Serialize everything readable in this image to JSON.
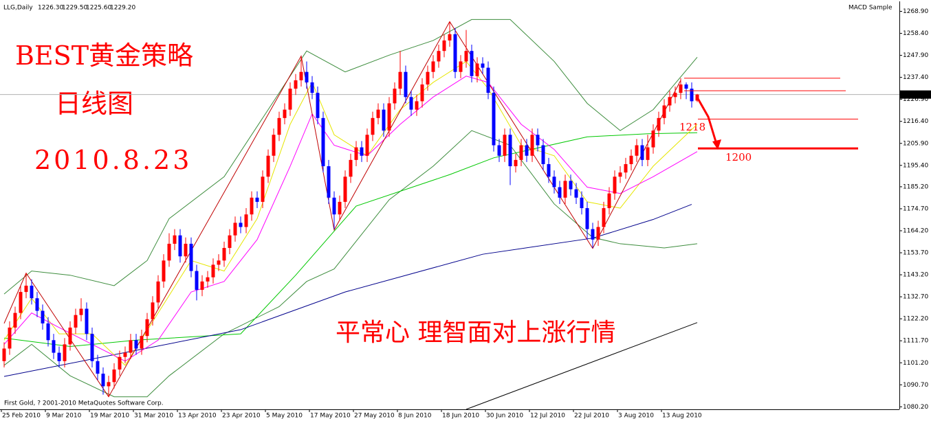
{
  "chart_data": {
    "type": "candlestick",
    "symbol": "LLG,Daily",
    "header": {
      "values": [
        1226.3,
        1229.5,
        1225.6,
        1229.2
      ],
      "value_labels": [
        "1226.30",
        "1229.50",
        "1225.60",
        "1229.20"
      ]
    },
    "indicator": "MACD Sample",
    "copyright": "First Gold, ? 2001-2010 MetaQuotes Software Corp.",
    "annotations": [
      "BEST黄金策略",
      "日线图",
      "2010.8.23",
      "平常心  理智面对上涨行情",
      "1218",
      "1200"
    ],
    "up_color": "#ff0000",
    "down_color": "#0000ff",
    "categories": [
      "25 Feb 2010",
      null,
      null,
      null,
      null,
      null,
      null,
      null,
      "9 Mar 2010",
      null,
      null,
      null,
      null,
      null,
      null,
      null,
      "19 Mar 2010",
      null,
      null,
      null,
      null,
      null,
      null,
      null,
      "31 Mar 2010",
      null,
      null,
      null,
      null,
      null,
      null,
      null,
      "13 Apr 2010",
      null,
      null,
      null,
      null,
      null,
      null,
      null,
      "23 Apr 2010",
      null,
      null,
      null,
      null,
      null,
      null,
      null,
      "5 May 2010",
      null,
      null,
      null,
      null,
      null,
      null,
      null,
      "17 May 2010",
      null,
      null,
      null,
      null,
      null,
      null,
      null,
      "27 May 2010",
      null,
      null,
      null,
      null,
      null,
      null,
      null,
      "8 Jun 2010",
      null,
      null,
      null,
      null,
      null,
      null,
      null,
      "18 Jun 2010",
      null,
      null,
      null,
      null,
      null,
      null,
      null,
      "30 Jun 2010",
      null,
      null,
      null,
      null,
      null,
      null,
      null,
      "12 Jul 2010",
      null,
      null,
      null,
      null,
      null,
      null,
      null,
      "22 Jul 2010",
      null,
      null,
      null,
      null,
      null,
      null,
      null,
      "3 Aug 2010",
      null,
      null,
      null,
      null,
      null,
      null,
      null,
      "13 Aug 2010",
      null,
      null,
      null,
      null,
      null,
      null
    ],
    "open": [
      1102,
      1108,
      1118,
      1125,
      1135,
      1138,
      1132,
      1126,
      1120,
      1112,
      1106,
      1102,
      1110,
      1118,
      1124,
      1127,
      1115,
      1102,
      1096,
      1090,
      1092,
      1098,
      1104,
      1106,
      1112,
      1108,
      1114,
      1122,
      1130,
      1140,
      1150,
      1158,
      1162,
      1152,
      1158,
      1145,
      1136,
      1140,
      1142,
      1148,
      1150,
      1156,
      1162,
      1168,
      1166,
      1172,
      1180,
      1178,
      1190,
      1200,
      1210,
      1218,
      1222,
      1232,
      1236,
      1240,
      1235,
      1230,
      1218,
      1195,
      1180,
      1172,
      1178,
      1190,
      1198,
      1204,
      1200,
      1210,
      1218,
      1222,
      1212,
      1225,
      1232,
      1240,
      1228,
      1222,
      1226,
      1234,
      1240,
      1245,
      1250,
      1255,
      1258,
      1240,
      1245,
      1250,
      1238,
      1244,
      1242,
      1230,
      1205,
      1200,
      1210,
      1195,
      1198,
      1205,
      1200,
      1210,
      1205,
      1196,
      1190,
      1185,
      1180,
      1188,
      1184,
      1180,
      1175,
      1165,
      1160,
      1166,
      1175,
      1182,
      1190,
      1192,
      1196,
      1200,
      1205,
      1198,
      1204,
      1212,
      1218,
      1224,
      1228,
      1230,
      1234,
      1232,
      1226.3
    ],
    "high": [
      1111,
      1121,
      1128,
      1138,
      1144,
      1141,
      1135,
      1129,
      1123,
      1115,
      1109,
      1113,
      1121,
      1127,
      1132,
      1130,
      1118,
      1105,
      1099,
      1095,
      1101,
      1107,
      1109,
      1115,
      1115,
      1117,
      1125,
      1133,
      1143,
      1153,
      1163,
      1165,
      1165,
      1161,
      1161,
      1148,
      1143,
      1145,
      1151,
      1153,
      1159,
      1165,
      1171,
      1171,
      1175,
      1183,
      1183,
      1193,
      1203,
      1213,
      1221,
      1225,
      1235,
      1239,
      1247,
      1245,
      1238,
      1233,
      1221,
      1198,
      1183,
      1181,
      1193,
      1201,
      1207,
      1207,
      1213,
      1221,
      1225,
      1225,
      1228,
      1235,
      1250,
      1243,
      1231,
      1229,
      1237,
      1243,
      1248,
      1253,
      1258,
      1264,
      1261,
      1248,
      1260,
      1253,
      1247,
      1247,
      1245,
      1233,
      1208,
      1213,
      1213,
      1201,
      1208,
      1208,
      1213,
      1213,
      1208,
      1199,
      1193,
      1188,
      1191,
      1191,
      1187,
      1183,
      1178,
      1168,
      1169,
      1178,
      1185,
      1193,
      1195,
      1199,
      1203,
      1208,
      1208,
      1210,
      1215,
      1221,
      1227,
      1231,
      1233,
      1237,
      1235,
      1235,
      1229.5
    ],
    "low": [
      1099,
      1105,
      1115,
      1122,
      1132,
      1129,
      1123,
      1117,
      1109,
      1103,
      1099,
      1099,
      1107,
      1115,
      1121,
      1112,
      1099,
      1093,
      1086,
      1085,
      1089,
      1095,
      1101,
      1103,
      1105,
      1105,
      1111,
      1119,
      1127,
      1137,
      1147,
      1155,
      1149,
      1149,
      1142,
      1131,
      1133,
      1137,
      1139,
      1145,
      1147,
      1153,
      1159,
      1163,
      1163,
      1169,
      1175,
      1175,
      1187,
      1197,
      1207,
      1215,
      1219,
      1229,
      1233,
      1232,
      1227,
      1215,
      1192,
      1177,
      1165,
      1169,
      1175,
      1187,
      1195,
      1197,
      1197,
      1207,
      1215,
      1209,
      1209,
      1222,
      1229,
      1225,
      1219,
      1219,
      1223,
      1231,
      1237,
      1242,
      1247,
      1252,
      1237,
      1237,
      1242,
      1235,
      1235,
      1239,
      1227,
      1202,
      1197,
      1197,
      1186,
      1192,
      1195,
      1197,
      1197,
      1202,
      1193,
      1187,
      1182,
      1177,
      1177,
      1181,
      1177,
      1172,
      1160,
      1156,
      1157,
      1163,
      1172,
      1179,
      1187,
      1189,
      1193,
      1197,
      1195,
      1195,
      1201,
      1209,
      1215,
      1221,
      1225,
      1227,
      1227,
      1223,
      1225.6
    ],
    "close": [
      1108,
      1118,
      1125,
      1135,
      1138,
      1132,
      1126,
      1120,
      1112,
      1106,
      1102,
      1110,
      1118,
      1124,
      1127,
      1115,
      1102,
      1096,
      1090,
      1092,
      1098,
      1104,
      1106,
      1112,
      1108,
      1114,
      1122,
      1130,
      1140,
      1150,
      1158,
      1162,
      1152,
      1158,
      1145,
      1136,
      1140,
      1142,
      1148,
      1150,
      1156,
      1162,
      1168,
      1166,
      1172,
      1180,
      1178,
      1190,
      1200,
      1210,
      1218,
      1222,
      1232,
      1236,
      1240,
      1235,
      1230,
      1218,
      1195,
      1180,
      1172,
      1178,
      1190,
      1198,
      1204,
      1200,
      1210,
      1218,
      1222,
      1212,
      1225,
      1232,
      1240,
      1228,
      1222,
      1226,
      1234,
      1240,
      1245,
      1250,
      1255,
      1258,
      1240,
      1245,
      1250,
      1238,
      1244,
      1242,
      1230,
      1205,
      1200,
      1210,
      1195,
      1198,
      1205,
      1200,
      1210,
      1205,
      1196,
      1190,
      1185,
      1180,
      1188,
      1184,
      1180,
      1175,
      1165,
      1160,
      1166,
      1175,
      1182,
      1190,
      1192,
      1196,
      1200,
      1205,
      1198,
      1204,
      1212,
      1218,
      1224,
      1228,
      1230,
      1234,
      1232,
      1226,
      1229.2
    ],
    "lines": [
      {
        "color": "#3c8c3c",
        "x": [
          0,
          5,
          12,
          20,
          26,
          30,
          40,
          50,
          55,
          62,
          70,
          78,
          85,
          92,
          100,
          106,
          112,
          118,
          126
        ],
        "values": [
          1134,
          1145,
          1143,
          1138,
          1150,
          1170,
          1190,
          1230,
          1250,
          1240,
          1248,
          1255,
          1265,
          1265,
          1245,
          1225,
          1212,
          1222,
          1247
        ]
      },
      {
        "color": "#3c8c3c",
        "x": [
          0,
          5,
          12,
          20,
          26,
          30,
          40,
          50,
          55,
          60,
          70,
          78,
          85,
          92,
          100,
          107,
          112,
          120,
          126
        ],
        "values": [
          1100,
          1110,
          1095,
          1085,
          1085,
          1095,
          1115,
          1128,
          1140,
          1146,
          1179,
          1195,
          1212,
          1205,
          1177,
          1161,
          1158,
          1156,
          1158
        ]
      },
      {
        "color": "#00c800",
        "x": [
          0,
          12,
          24,
          43,
          53,
          64,
          81,
          89,
          106,
          117,
          126
        ],
        "values": [
          1113,
          1109,
          1112,
          1115,
          1143,
          1176,
          1191,
          1199,
          1209,
          1210.5,
          1211
        ]
      },
      {
        "color": "#00008b",
        "x": [
          0,
          43,
          62,
          87,
          107,
          118,
          125
        ],
        "values": [
          1094.7,
          1117,
          1135,
          1153,
          1160.7,
          1169.6,
          1176.8
        ]
      },
      {
        "color": "#000000",
        "x": [
          84,
          126
        ],
        "values": [
          1079,
          1120.4
        ]
      },
      {
        "color": "#e6e600",
        "x": [
          0,
          5,
          10,
          16,
          22,
          28,
          34,
          40,
          46,
          52,
          56,
          60,
          66,
          72,
          78,
          84,
          88,
          94,
          100,
          106,
          112,
          118,
          126
        ],
        "values": [
          1112,
          1132,
          1115,
          1115,
          1100,
          1125,
          1150,
          1145,
          1170,
          1215,
          1235,
          1210,
          1200,
          1222,
          1235,
          1245,
          1232,
          1205,
          1200,
          1178,
          1175,
          1195,
          1215
        ]
      },
      {
        "color": "#ff00ff",
        "x": [
          0,
          5,
          10,
          16,
          22,
          28,
          34,
          40,
          46,
          52,
          56,
          60,
          66,
          72,
          78,
          84,
          88,
          94,
          100,
          106,
          112,
          118,
          126
        ],
        "values": [
          1110,
          1125,
          1118,
          1110,
          1102,
          1112,
          1135,
          1140,
          1160,
          1195,
          1220,
          1205,
          1200,
          1215,
          1228,
          1238,
          1235,
          1215,
          1203,
          1185,
          1182,
          1190,
          1202
        ]
      },
      {
        "color": "#c00000",
        "x": [
          0,
          4,
          19,
          54,
          60,
          81,
          107,
          123
        ],
        "values": [
          1120,
          1144,
          1085,
          1247.6,
          1164.6,
          1264,
          1155.8,
          1236
        ]
      }
    ],
    "levels": [
      1237,
      1231,
      1217.5,
      1203.5
    ],
    "current_price": {
      "value": 1229.2,
      "label": "1229.20"
    },
    "ylim": [
      1079,
      1273
    ],
    "yticks": [
      {
        "value": 1268.9,
        "label": "1268.90"
      },
      {
        "value": 1258.4,
        "label": "1258.40"
      },
      {
        "value": 1247.9,
        "label": "1247.90"
      },
      {
        "value": 1237.4,
        "label": "1237.40"
      },
      {
        "value": 1226.9,
        "label": "1226.90"
      },
      {
        "value": 1216.4,
        "label": "1216.40"
      },
      {
        "value": 1205.9,
        "label": "1205.90"
      },
      {
        "value": 1195.4,
        "label": "1195.40"
      },
      {
        "value": 1185.2,
        "label": "1185.20"
      },
      {
        "value": 1174.7,
        "label": "1174.70"
      },
      {
        "value": 1164.2,
        "label": "1164.20"
      },
      {
        "value": 1153.7,
        "label": "1153.70"
      },
      {
        "value": 1143.2,
        "label": "1143.20"
      },
      {
        "value": 1132.7,
        "label": "1132.70"
      },
      {
        "value": 1122.2,
        "label": "1122.20"
      },
      {
        "value": 1111.7,
        "label": "1111.70"
      },
      {
        "value": 1101.2,
        "label": "1101.20"
      },
      {
        "value": 1090.7,
        "label": "1090.70"
      },
      {
        "value": 1080.2,
        "label": "1080.20"
      }
    ]
  }
}
